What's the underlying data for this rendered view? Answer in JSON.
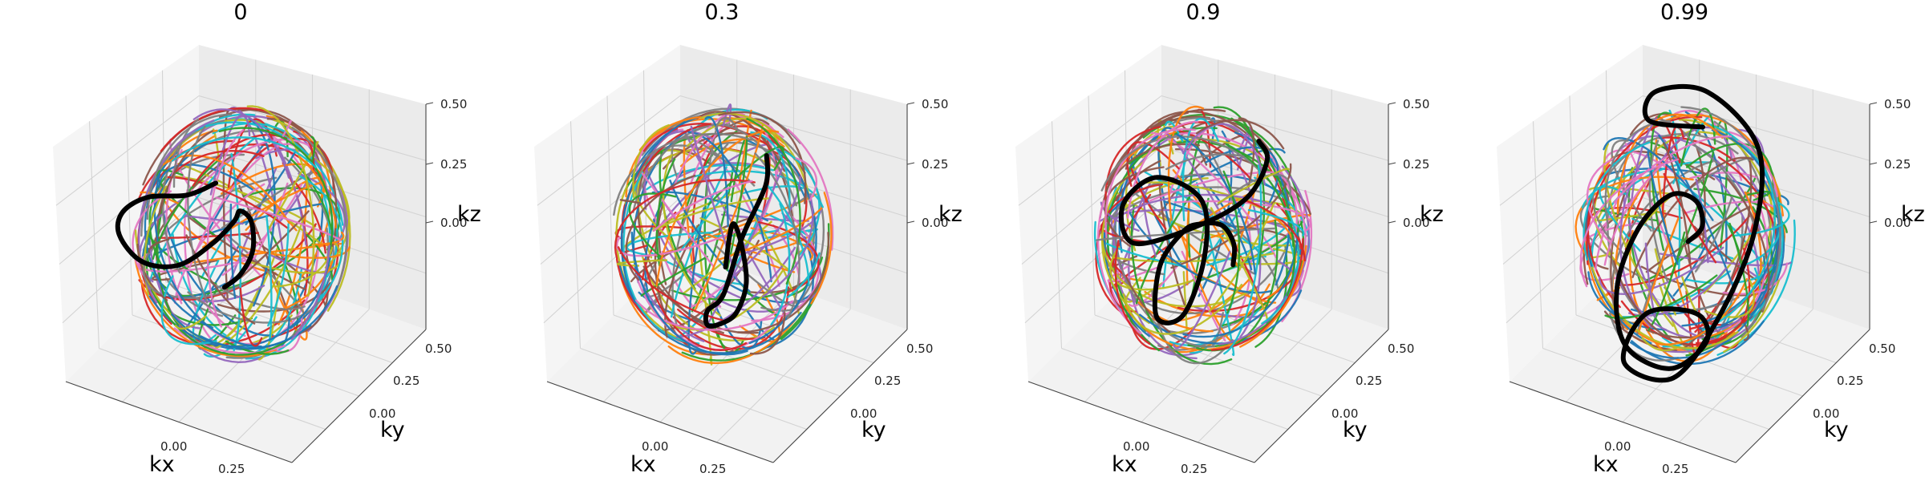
{
  "chart_data": [
    {
      "type": "line",
      "projection": "3d",
      "title": "0",
      "xlabel": "kx",
      "ylabel": "ky",
      "zlabel": "kz",
      "xticks": [
        "0.00",
        "0.25"
      ],
      "yticks": [
        "0.00",
        "0.25",
        "0.50"
      ],
      "zticks": [
        "0.00",
        "0.25",
        "0.50"
      ],
      "xlim": [
        -0.5,
        0.5
      ],
      "ylim": [
        -0.5,
        0.5
      ],
      "zlim": [
        -0.5,
        0.5
      ],
      "grid": true,
      "background_trajectories": {
        "count": 180,
        "colors": "tab10 cycle",
        "domain": "unit-radius sphere |k| = 0.5"
      },
      "highlighted_trajectory": {
        "color": "#000000",
        "points": [
          [
            -0.02,
            -0.08,
            -0.18
          ],
          [
            0.1,
            -0.12,
            -0.08
          ],
          [
            0.15,
            -0.1,
            0.02
          ],
          [
            0.1,
            -0.05,
            0.1
          ],
          [
            -0.02,
            0.02,
            0.08
          ],
          [
            -0.12,
            0.1,
            -0.02
          ],
          [
            -0.25,
            0.12,
            -0.15
          ],
          [
            -0.38,
            0.05,
            -0.25
          ],
          [
            -0.45,
            -0.1,
            -0.2
          ],
          [
            -0.42,
            -0.28,
            -0.02
          ],
          [
            -0.3,
            -0.4,
            0.15
          ],
          [
            -0.12,
            -0.45,
            0.28
          ],
          [
            0.05,
            -0.4,
            0.32
          ],
          [
            0.12,
            -0.3,
            0.35
          ]
        ]
      }
    },
    {
      "type": "line",
      "projection": "3d",
      "title": "0.3",
      "xlabel": "kx",
      "ylabel": "ky",
      "zlabel": "kz",
      "xticks": [
        "0.00",
        "0.25"
      ],
      "yticks": [
        "0.00",
        "0.25",
        "0.50"
      ],
      "zticks": [
        "0.00",
        "0.25",
        "0.50"
      ],
      "xlim": [
        -0.5,
        0.5
      ],
      "ylim": [
        -0.5,
        0.5
      ],
      "zlim": [
        -0.5,
        0.5
      ],
      "grid": true,
      "background_trajectories": {
        "count": 180,
        "colors": "tab10 cycle",
        "domain": "unit-radius sphere |k| = 0.5"
      },
      "highlighted_trajectory": {
        "color": "#000000",
        "points": [
          [
            0.02,
            0.0,
            -0.12
          ],
          [
            0.0,
            0.05,
            -0.02
          ],
          [
            0.05,
            0.02,
            0.05
          ],
          [
            0.15,
            -0.05,
            0.02
          ],
          [
            0.2,
            -0.08,
            -0.1
          ],
          [
            0.12,
            -0.05,
            -0.25
          ],
          [
            -0.05,
            0.05,
            -0.38
          ],
          [
            -0.18,
            0.12,
            -0.45
          ],
          [
            -0.12,
            0.05,
            -0.35
          ],
          [
            0.05,
            -0.05,
            -0.2
          ],
          [
            0.15,
            -0.05,
            0.05
          ],
          [
            0.22,
            0.02,
            0.25
          ],
          [
            0.2,
            0.05,
            0.35
          ]
        ]
      }
    },
    {
      "type": "line",
      "projection": "3d",
      "title": "0.9",
      "xlabel": "kx",
      "ylabel": "ky",
      "zlabel": "kz",
      "xticks": [
        "0.00",
        "0.25"
      ],
      "yticks": [
        "0.00",
        "0.25",
        "0.50"
      ],
      "zticks": [
        "0.00",
        "0.25",
        "0.50"
      ],
      "xlim": [
        -0.5,
        0.5
      ],
      "ylim": [
        -0.5,
        0.5
      ],
      "zlim": [
        -0.5,
        0.5
      ],
      "grid": true,
      "background_trajectories": {
        "count": 180,
        "colors": "tab10 cycle",
        "domain": "unit-radius sphere |k| = 0.5"
      },
      "highlighted_trajectory": {
        "color": "#000000",
        "points": [
          [
            0.12,
            0.05,
            -0.1
          ],
          [
            0.15,
            0.02,
            0.0
          ],
          [
            0.12,
            -0.02,
            0.08
          ],
          [
            0.0,
            -0.02,
            0.05
          ],
          [
            -0.15,
            0.05,
            -0.05
          ],
          [
            -0.25,
            0.02,
            -0.2
          ],
          [
            -0.15,
            -0.12,
            -0.32
          ],
          [
            0.02,
            -0.15,
            -0.25
          ],
          [
            0.05,
            -0.05,
            -0.05
          ],
          [
            -0.05,
            0.05,
            0.1
          ],
          [
            -0.25,
            0.0,
            0.15
          ],
          [
            -0.35,
            -0.1,
            0.05
          ],
          [
            -0.25,
            -0.15,
            -0.05
          ],
          [
            0.0,
            -0.05,
            0.05
          ],
          [
            0.15,
            0.1,
            0.15
          ],
          [
            0.22,
            0.15,
            0.3
          ],
          [
            0.2,
            0.12,
            0.38
          ]
        ]
      }
    },
    {
      "type": "line",
      "projection": "3d",
      "title": "0.99",
      "xlabel": "kx",
      "ylabel": "ky",
      "zlabel": "kz",
      "xticks": [
        "0.00",
        "0.25"
      ],
      "yticks": [
        "0.00",
        "0.25",
        "0.50"
      ],
      "zticks": [
        "0.00",
        "0.25",
        "0.50"
      ],
      "xlim": [
        -0.5,
        0.5
      ],
      "ylim": [
        -0.5,
        0.5
      ],
      "zlim": [
        -0.5,
        0.5
      ],
      "grid": true,
      "background_trajectories": {
        "count": 180,
        "colors": "tab10 cycle",
        "domain": "unit-radius sphere |k| = 0.5"
      },
      "highlighted_trajectory": {
        "color": "#000000",
        "points": [
          [
            0.02,
            0.0,
            -0.02
          ],
          [
            0.08,
            0.02,
            0.05
          ],
          [
            0.02,
            0.05,
            0.12
          ],
          [
            -0.12,
            0.05,
            0.1
          ],
          [
            -0.25,
            0.0,
            -0.05
          ],
          [
            -0.28,
            -0.1,
            -0.25
          ],
          [
            -0.15,
            -0.2,
            -0.4
          ],
          [
            0.05,
            -0.15,
            -0.45
          ],
          [
            0.12,
            0.0,
            -0.38
          ],
          [
            -0.02,
            0.1,
            -0.35
          ],
          [
            -0.25,
            0.05,
            -0.4
          ],
          [
            -0.2,
            -0.15,
            -0.5
          ],
          [
            0.15,
            -0.25,
            -0.42
          ],
          [
            0.35,
            -0.2,
            -0.15
          ],
          [
            0.42,
            -0.05,
            0.15
          ],
          [
            0.3,
            0.12,
            0.38
          ],
          [
            0.0,
            0.15,
            0.5
          ],
          [
            -0.2,
            0.05,
            0.48
          ],
          [
            -0.15,
            -0.05,
            0.42
          ],
          [
            0.1,
            0.0,
            0.45
          ]
        ]
      }
    }
  ],
  "colors": {
    "tab10": [
      "#1f77b4",
      "#ff7f0e",
      "#2ca02c",
      "#d62728",
      "#9467bd",
      "#8c564b",
      "#e377c2",
      "#7f7f7f",
      "#bcbd22",
      "#17becf"
    ],
    "highlight": "#000000",
    "pane_floor": "#f2f2f2",
    "pane_left": "#f5f5f5",
    "pane_right": "#ebebeb",
    "grid": "#d3d3d3"
  }
}
